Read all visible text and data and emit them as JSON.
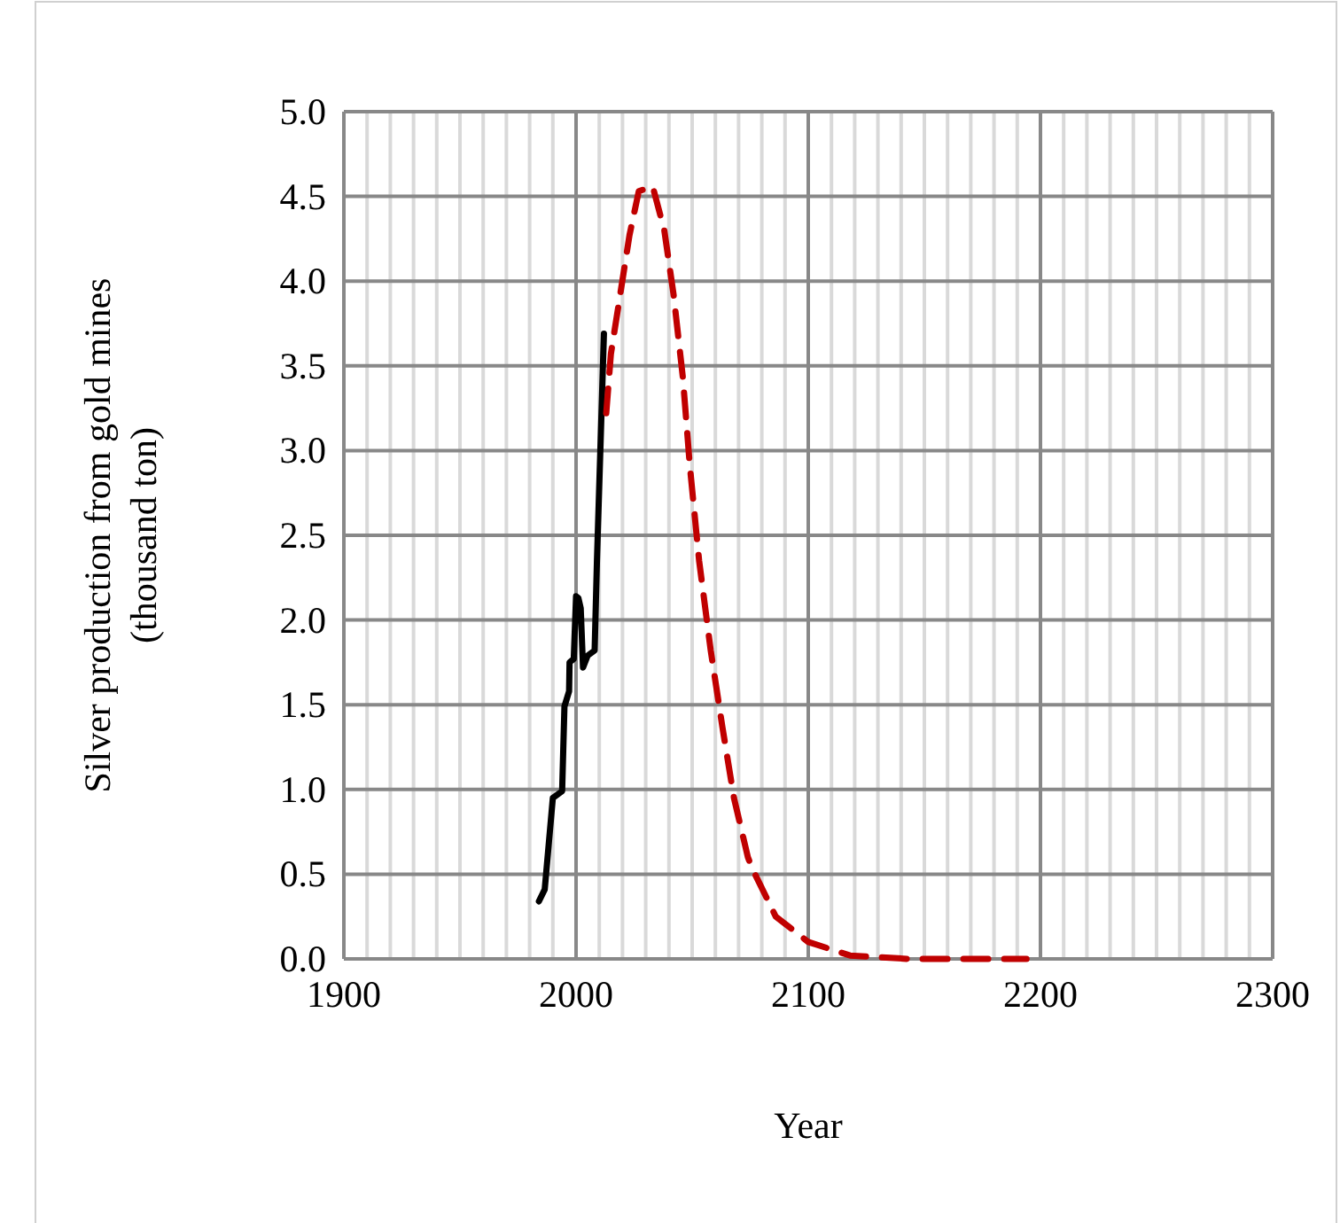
{
  "chart_data": {
    "type": "line",
    "xlabel": "Year",
    "ylabel": "Silver production from gold mines\n(thousand ton)",
    "xlim": [
      1900,
      2300
    ],
    "ylim": [
      0,
      5
    ],
    "xticks": [
      1900,
      {
        "value": 1910,
        "label": null
      },
      {
        "value": 1920,
        "label": null
      },
      {
        "value": 1930,
        "label": null
      },
      {
        "value": 1940,
        "label": null
      },
      {
        "value": 1950,
        "label": null
      },
      {
        "value": 1960,
        "label": null
      },
      {
        "value": 1970,
        "label": null
      },
      {
        "value": 1980,
        "label": null
      },
      {
        "value": 1990,
        "label": null
      },
      2000,
      {
        "value": 2010,
        "label": null
      },
      {
        "value": 2020,
        "label": null
      },
      {
        "value": 2030,
        "label": null
      },
      {
        "value": 2040,
        "label": null
      },
      {
        "value": 2050,
        "label": null
      },
      {
        "value": 2060,
        "label": null
      },
      {
        "value": 2070,
        "label": null
      },
      {
        "value": 2080,
        "label": null
      },
      {
        "value": 2090,
        "label": null
      },
      2100,
      {
        "value": 2110,
        "label": null
      },
      {
        "value": 2120,
        "label": null
      },
      {
        "value": 2130,
        "label": null
      },
      {
        "value": 2140,
        "label": null
      },
      {
        "value": 2150,
        "label": null
      },
      {
        "value": 2160,
        "label": null
      },
      {
        "value": 2170,
        "label": null
      },
      {
        "value": 2180,
        "label": null
      },
      {
        "value": 2190,
        "label": null
      },
      2200,
      {
        "value": 2210,
        "label": null
      },
      {
        "value": 2220,
        "label": null
      },
      {
        "value": 2230,
        "label": null
      },
      {
        "value": 2240,
        "label": null
      },
      {
        "value": 2250,
        "label": null
      },
      {
        "value": 2260,
        "label": null
      },
      {
        "value": 2270,
        "label": null
      },
      {
        "value": 2280,
        "label": null
      },
      {
        "value": 2290,
        "label": null
      },
      2300
    ],
    "yticks": [
      {
        "value": 0,
        "label": "0.0"
      },
      {
        "value": 0.5,
        "label": "0.5"
      },
      {
        "value": 1,
        "label": "1.0"
      },
      {
        "value": 1.5,
        "label": "1.5"
      },
      {
        "value": 2,
        "label": "2.0"
      },
      {
        "value": 2.5,
        "label": "2.5"
      },
      {
        "value": 3,
        "label": "3.0"
      },
      {
        "value": 3.5,
        "label": "3.5"
      },
      {
        "value": 4,
        "label": "4.0"
      },
      {
        "value": 4.5,
        "label": "4.5"
      },
      {
        "value": 5,
        "label": "5.0"
      }
    ],
    "grid": true,
    "marker": "none",
    "series": [
      {
        "color": "#000000",
        "line_style": "solid",
        "x": [
          1984,
          1986.5,
          1990,
          1994,
          1995,
          1997,
          1997.2,
          1999,
          2000,
          2001,
          2002,
          2003,
          2005,
          2008,
          2009,
          2012
        ],
        "values": [
          0.34,
          0.41,
          0.95,
          0.99,
          1.49,
          1.58,
          1.75,
          1.77,
          2.14,
          2.13,
          2.07,
          1.72,
          1.79,
          1.82,
          2.35,
          3.69
        ]
      },
      {
        "color": "#c00000",
        "line_style": "dashed",
        "x": [
          2013,
          2015,
          2019,
          2023,
          2027,
          2033,
          2038,
          2042,
          2046,
          2049,
          2053,
          2058,
          2063,
          2068,
          2074,
          2076,
          2086,
          2100,
          2118,
          2143,
          2194
        ],
        "values": [
          3.22,
          3.57,
          3.92,
          4.27,
          4.53,
          4.56,
          4.3,
          3.92,
          3.43,
          2.91,
          2.35,
          1.82,
          1.37,
          0.95,
          0.6,
          0.53,
          0.25,
          0.1,
          0.02,
          0,
          0
        ]
      }
    ]
  }
}
